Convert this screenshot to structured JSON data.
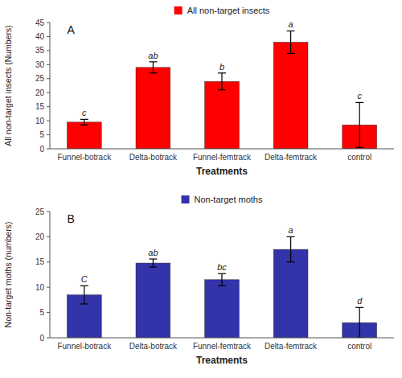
{
  "chart_data": [
    {
      "type": "bar",
      "title": "A",
      "categories": [
        "Funnel-botrack",
        "Delta-botrack",
        "Funnel-femtrack",
        "Delta-femtrack",
        "control"
      ],
      "series": [
        {
          "name": "All non-target insects",
          "color": "#FF0000",
          "values": [
            9.5,
            29.0,
            24.0,
            38.0,
            8.5
          ],
          "errors": [
            1.0,
            2.0,
            3.0,
            4.0,
            8.0
          ]
        }
      ],
      "annotations": [
        "c",
        "ab",
        "b",
        "a",
        "c"
      ],
      "x_label": "Treatments",
      "y_label": "All non-target insects (Numbers)",
      "ylim": [
        0,
        45
      ],
      "yticks": [
        0,
        5,
        10,
        15,
        20,
        25,
        30,
        35,
        40,
        45
      ],
      "grid": false,
      "legend": "top"
    },
    {
      "type": "bar",
      "title": "B",
      "categories": [
        "Funnel-botrack",
        "Delta-botrack",
        "Funnel-femtrack",
        "Delta-femtrack",
        "control"
      ],
      "series": [
        {
          "name": "Non-target moths",
          "color": "#3333AA",
          "values": [
            8.5,
            14.8,
            11.5,
            17.5,
            3.0
          ],
          "errors": [
            1.8,
            0.8,
            1.2,
            2.5,
            3.0
          ]
        }
      ],
      "annotations": [
        "C",
        "ab",
        "bc",
        "a",
        "d"
      ],
      "x_label": "Treatments",
      "y_label": "Non-target moths (numbers)",
      "ylim": [
        0,
        25
      ],
      "yticks": [
        0,
        5,
        10,
        15,
        20,
        25
      ],
      "grid": false,
      "legend": "top"
    }
  ]
}
